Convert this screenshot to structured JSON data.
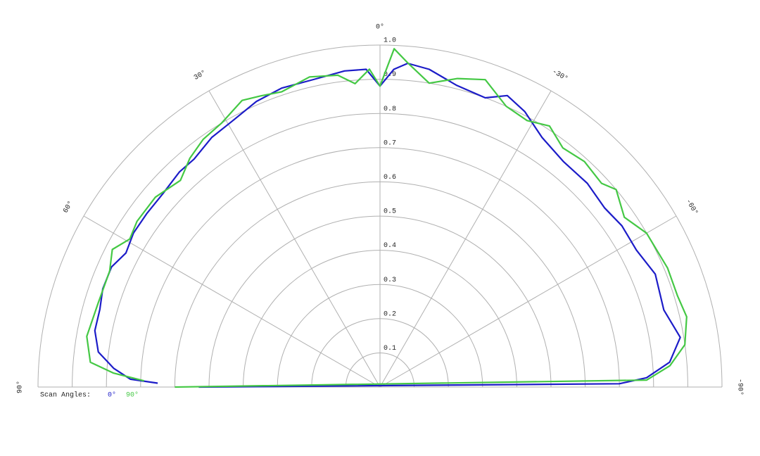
{
  "chart_data": {
    "type": "polar",
    "rlim": [
      0,
      1
    ],
    "rticks": [
      0.1,
      0.2,
      0.3,
      0.4,
      0.5,
      0.6,
      0.7,
      0.8,
      0.9,
      {
        "value": 1,
        "label": "1.0"
      }
    ],
    "thetaticks": [
      {
        "value": 90,
        "label": "90°"
      },
      {
        "value": 60,
        "label": "60°"
      },
      {
        "value": 30,
        "label": "30°"
      },
      {
        "value": 0,
        "label": "0°"
      },
      {
        "value": -30,
        "label": "-30°"
      },
      {
        "value": -60,
        "label": "-60°"
      },
      {
        "value": -90,
        "label": "-90°"
      }
    ],
    "legend_title": "Scan Angles:",
    "series": [
      {
        "name": "0°",
        "color": "#1c1cc8",
        "theta": [
          89,
          88.2,
          86,
          82.9,
          78.8,
          74.5,
          70.5,
          65.9,
          62.2,
          58,
          53.4,
          48.4,
          43,
          39.2,
          34,
          28.9,
          23.4,
          18.2,
          12.2,
          6.4,
          2.5,
          0,
          -2.5,
          -4.9,
          -8.8,
          -14.3,
          -20,
          -23.6,
          -27.7,
          -33,
          -39.1,
          -45.5,
          -51.4,
          -56.3,
          -61.9,
          -67.7,
          -74.8,
          -80.6,
          -85.1,
          -88,
          -89.2,
          90
        ],
        "values": [
          0.65,
          0.73,
          0.78,
          0.83,
          0.85,
          0.85,
          0.86,
          0.86,
          0.84,
          0.85,
          0.85,
          0.85,
          0.86,
          0.86,
          0.88,
          0.89,
          0.91,
          0.92,
          0.92,
          0.93,
          0.93,
          0.88,
          0.93,
          0.95,
          0.94,
          0.91,
          0.9,
          0.93,
          0.91,
          0.87,
          0.85,
          0.85,
          0.84,
          0.85,
          0.85,
          0.87,
          0.86,
          0.89,
          0.85,
          0.78,
          0.7,
          0.53
        ]
      },
      {
        "name": "90°",
        "color": "#44c844",
        "theta": [
          88.5,
          87,
          85.1,
          80.2,
          73.4,
          66.8,
          62.8,
          59.4,
          55.7,
          49.8,
          44,
          39.7,
          35.5,
          31,
          25.7,
          22.3,
          18.4,
          12.8,
          7.7,
          4.7,
          1.9,
          0,
          -2.4,
          -5,
          -9.2,
          -14.1,
          -18.9,
          -24.2,
          -28.9,
          -33,
          -37.4,
          -42.2,
          -47.4,
          -50.1,
          -55.2,
          -60,
          -67.5,
          -73,
          -77.1,
          -82.1,
          -85.8,
          -88.5,
          90
        ],
        "values": [
          0.69,
          0.78,
          0.85,
          0.87,
          0.86,
          0.86,
          0.88,
          0.85,
          0.86,
          0.86,
          0.84,
          0.87,
          0.89,
          0.9,
          0.93,
          0.92,
          0.91,
          0.93,
          0.92,
          0.89,
          0.93,
          0.88,
          0.99,
          0.95,
          0.9,
          0.93,
          0.95,
          0.9,
          0.89,
          0.91,
          0.88,
          0.89,
          0.88,
          0.9,
          0.87,
          0.9,
          0.91,
          0.91,
          0.92,
          0.9,
          0.85,
          0.78,
          0.6
        ]
      }
    ]
  }
}
